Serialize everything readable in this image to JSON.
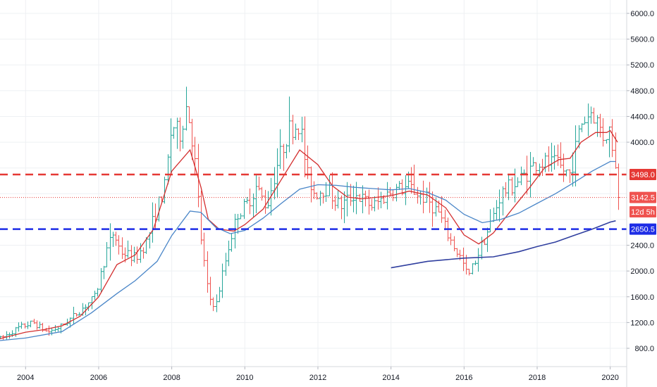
{
  "chart_data": {
    "type": "bar",
    "subtype": "ohlc-monthly",
    "title": "",
    "xlabel": "",
    "ylabel": "",
    "ylim": [
      600,
      6200
    ],
    "xlim": [
      2003.3,
      2020.45
    ],
    "grid": true,
    "y_ticks": [
      800,
      1200,
      1600,
      2000,
      2400,
      2800,
      3200,
      3600,
      4000,
      4400,
      4800,
      5200,
      5600,
      6000
    ],
    "y_tick_labels": {
      "800": "800.0",
      "1200": "1200.0",
      "1600": "1600.0",
      "2000": "2000.0",
      "2400": "2400.0",
      "4000": "4000.0",
      "4400": "4400.0",
      "4800": "4800.0",
      "5200": "5200.0",
      "5600": "5600.0",
      "6000": "6000.0"
    },
    "x_ticks": [
      "2004",
      "2006",
      "2008",
      "2010",
      "2012",
      "2014",
      "2016",
      "2018",
      "2020"
    ],
    "x_tick_values": [
      2004,
      2006,
      2008,
      2010,
      2012,
      2014,
      2016,
      2018,
      2020
    ],
    "close_anchors": [
      [
        2003.3,
        950
      ],
      [
        2003.8,
        1120
      ],
      [
        2004.2,
        1200
      ],
      [
        2004.6,
        1050
      ],
      [
        2005.0,
        1150
      ],
      [
        2005.5,
        1400
      ],
      [
        2005.9,
        1600
      ],
      [
        2006.2,
        2300
      ],
      [
        2006.4,
        2600
      ],
      [
        2006.6,
        2300
      ],
      [
        2007.0,
        2200
      ],
      [
        2007.3,
        2450
      ],
      [
        2007.6,
        3000
      ],
      [
        2007.8,
        3300
      ],
      [
        2008.0,
        4300
      ],
      [
        2008.2,
        4100
      ],
      [
        2008.4,
        4600
      ],
      [
        2008.6,
        3900
      ],
      [
        2008.8,
        2500
      ],
      [
        2009.0,
        1600
      ],
      [
        2009.2,
        1450
      ],
      [
        2009.4,
        2000
      ],
      [
        2009.6,
        2500
      ],
      [
        2009.8,
        2900
      ],
      [
        2010.0,
        3000
      ],
      [
        2010.3,
        3300
      ],
      [
        2010.6,
        3000
      ],
      [
        2010.9,
        3700
      ],
      [
        2011.2,
        4200
      ],
      [
        2011.5,
        4300
      ],
      [
        2011.7,
        3500
      ],
      [
        2011.9,
        3200
      ],
      [
        2012.2,
        3300
      ],
      [
        2012.6,
        3000
      ],
      [
        2013.0,
        3200
      ],
      [
        2013.5,
        3000
      ],
      [
        2014.0,
        3250
      ],
      [
        2014.5,
        3300
      ],
      [
        2015.0,
        3100
      ],
      [
        2015.3,
        2900
      ],
      [
        2015.6,
        2500
      ],
      [
        2015.9,
        2200
      ],
      [
        2016.1,
        1900
      ],
      [
        2016.4,
        2300
      ],
      [
        2016.7,
        2700
      ],
      [
        2017.0,
        3200
      ],
      [
        2017.5,
        3400
      ],
      [
        2018.0,
        3700
      ],
      [
        2018.5,
        3650
      ],
      [
        2018.9,
        3500
      ],
      [
        2019.2,
        4300
      ],
      [
        2019.5,
        4500
      ],
      [
        2019.8,
        4100
      ],
      [
        2020.0,
        4200
      ],
      [
        2020.1,
        3800
      ],
      [
        2020.2,
        3142.5
      ]
    ],
    "series": [
      {
        "name": "",
        "kind": "ma-short",
        "color": "#d32f2f",
        "points": [
          [
            2003.3,
            950
          ],
          [
            2004.0,
            1050
          ],
          [
            2004.5,
            1090
          ],
          [
            2005.0,
            1150
          ],
          [
            2005.5,
            1300
          ],
          [
            2006.0,
            1600
          ],
          [
            2006.5,
            2100
          ],
          [
            2007.0,
            2250
          ],
          [
            2007.5,
            2650
          ],
          [
            2008.0,
            3550
          ],
          [
            2008.5,
            3880
          ],
          [
            2008.8,
            3300
          ],
          [
            2009.0,
            2800
          ],
          [
            2009.3,
            2650
          ],
          [
            2009.7,
            2620
          ],
          [
            2010.0,
            2720
          ],
          [
            2010.5,
            2960
          ],
          [
            2011.0,
            3420
          ],
          [
            2011.5,
            3880
          ],
          [
            2012.0,
            3650
          ],
          [
            2012.4,
            3320
          ],
          [
            2012.8,
            3150
          ],
          [
            2013.2,
            3120
          ],
          [
            2013.7,
            3150
          ],
          [
            2014.0,
            3170
          ],
          [
            2014.5,
            3240
          ],
          [
            2015.0,
            3180
          ],
          [
            2015.5,
            2980
          ],
          [
            2016.0,
            2560
          ],
          [
            2016.4,
            2420
          ],
          [
            2016.8,
            2590
          ],
          [
            2017.3,
            2950
          ],
          [
            2017.8,
            3300
          ],
          [
            2018.2,
            3600
          ],
          [
            2018.6,
            3730
          ],
          [
            2018.9,
            3750
          ],
          [
            2019.2,
            4000
          ],
          [
            2019.6,
            4150
          ],
          [
            2019.9,
            4150
          ],
          [
            2020.0,
            4180
          ],
          [
            2020.2,
            4000
          ]
        ]
      },
      {
        "name": "",
        "kind": "ma-mid",
        "color": "#4a86c8",
        "points": [
          [
            2003.3,
            920
          ],
          [
            2004.0,
            960
          ],
          [
            2005.0,
            1060
          ],
          [
            2005.8,
            1350
          ],
          [
            2006.5,
            1650
          ],
          [
            2007.0,
            1850
          ],
          [
            2007.6,
            2150
          ],
          [
            2008.0,
            2550
          ],
          [
            2008.5,
            2930
          ],
          [
            2008.8,
            2910
          ],
          [
            2009.2,
            2680
          ],
          [
            2009.6,
            2580
          ],
          [
            2010.0,
            2630
          ],
          [
            2010.5,
            2820
          ],
          [
            2011.0,
            3050
          ],
          [
            2011.5,
            3270
          ],
          [
            2012.0,
            3340
          ],
          [
            2012.5,
            3330
          ],
          [
            2013.0,
            3300
          ],
          [
            2013.5,
            3280
          ],
          [
            2014.0,
            3260
          ],
          [
            2014.5,
            3280
          ],
          [
            2015.0,
            3220
          ],
          [
            2015.5,
            3100
          ],
          [
            2016.0,
            2880
          ],
          [
            2016.5,
            2750
          ],
          [
            2017.0,
            2800
          ],
          [
            2017.5,
            2900
          ],
          [
            2018.0,
            3050
          ],
          [
            2018.5,
            3200
          ],
          [
            2019.0,
            3370
          ],
          [
            2019.5,
            3550
          ],
          [
            2020.0,
            3700
          ],
          [
            2020.15,
            3700
          ]
        ]
      },
      {
        "name": "",
        "kind": "ma-long",
        "color": "#303f9f",
        "points": [
          [
            2014.0,
            2050
          ],
          [
            2015.0,
            2150
          ],
          [
            2016.0,
            2200
          ],
          [
            2016.8,
            2220
          ],
          [
            2017.5,
            2300
          ],
          [
            2018.0,
            2380
          ],
          [
            2018.5,
            2450
          ],
          [
            2019.0,
            2550
          ],
          [
            2019.5,
            2650
          ],
          [
            2020.0,
            2760
          ],
          [
            2020.15,
            2780
          ]
        ]
      }
    ],
    "h_lines": [
      {
        "value": 3498.0,
        "label": "3498.0",
        "color": "#e53935",
        "style": "dashed-thick"
      },
      {
        "value": 2650.5,
        "label": "2650.5",
        "color": "#1e2de6",
        "style": "dashed-thick"
      },
      {
        "value": 3142.5,
        "label": "3142.5",
        "color": "#e53935",
        "style": "dotted-thin"
      }
    ],
    "badges": [
      {
        "value": 3498.0,
        "text": "3498.0",
        "color": "#e53935"
      },
      {
        "value": 3142.5,
        "text": "3142.5",
        "color": "#ef5350"
      },
      {
        "value": 2920,
        "text": "12d 5h",
        "color": "#ef5350"
      },
      {
        "value": 2650.5,
        "text": "2650.5",
        "color": "#1e2de6"
      }
    ],
    "colors": {
      "up": "#26a69a",
      "down": "#ef5350",
      "grid": "#eef0f3",
      "axis": "#d6d8dc"
    }
  }
}
